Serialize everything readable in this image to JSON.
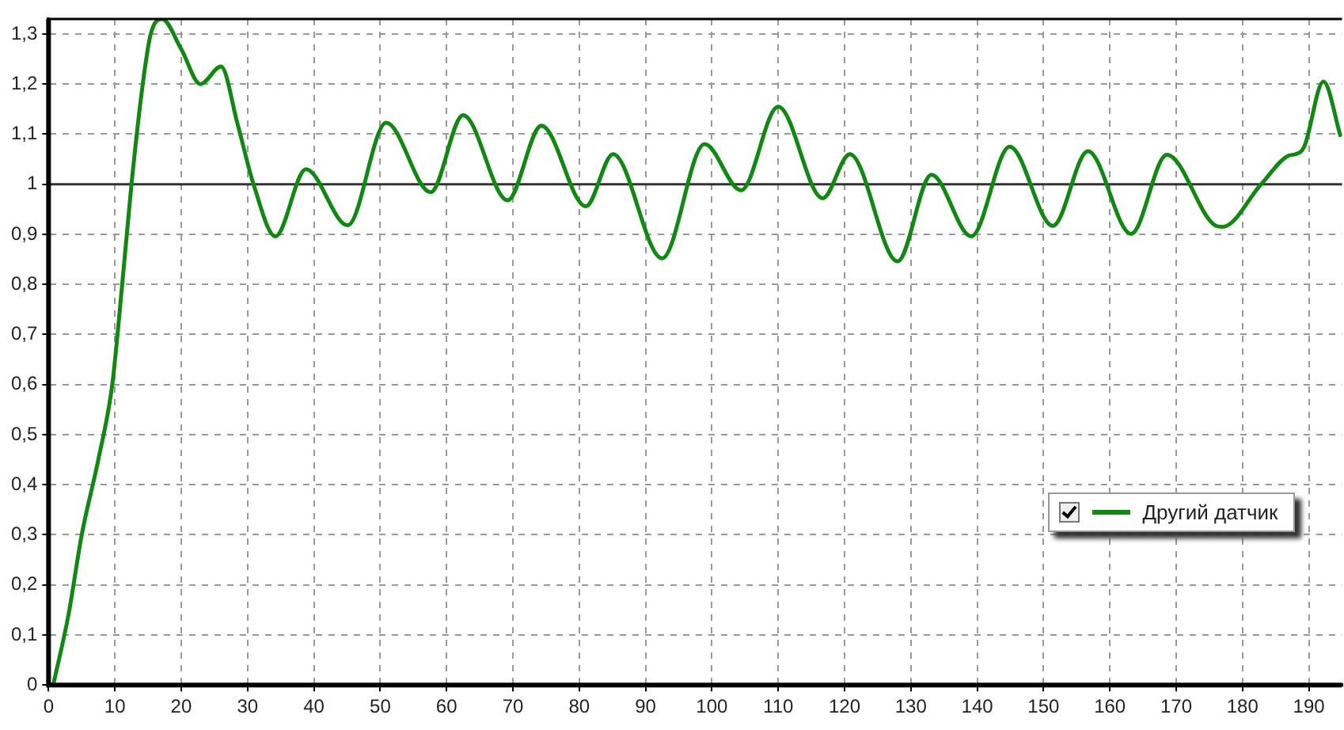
{
  "chart_data": {
    "type": "line",
    "legend": "right",
    "grid": true,
    "marker": "none",
    "line_style": "solid",
    "xlim": [
      0,
      195
    ],
    "xticks": [
      0,
      10,
      20,
      30,
      40,
      50,
      60,
      70,
      80,
      90,
      100,
      110,
      120,
      130,
      140,
      150,
      160,
      170,
      180,
      190
    ],
    "ylim": [
      0,
      1.33
    ],
    "yticks": [
      0,
      {
        "value": 0.1,
        "label": "0,1"
      },
      {
        "value": 0.2,
        "label": "0,2"
      },
      {
        "value": 0.3,
        "label": "0,3"
      },
      {
        "value": 0.4,
        "label": "0,4"
      },
      {
        "value": 0.5,
        "label": "0,5"
      },
      {
        "value": 0.6,
        "label": "0,6"
      },
      {
        "value": 0.7,
        "label": "0,7"
      },
      {
        "value": 0.8,
        "label": "0,8"
      },
      {
        "value": 0.9,
        "label": "0,9"
      },
      1,
      {
        "value": 1.1,
        "label": "1,1"
      },
      {
        "value": 1.2,
        "label": "1,2"
      },
      {
        "value": 1.3,
        "label": "1,3"
      }
    ],
    "ref_lines": [
      {
        "axis": "y",
        "value": 1,
        "color": "#333333",
        "line_style": "solid"
      }
    ],
    "series": [
      {
        "name": "Другий датчик",
        "color": "#118811",
        "x": [
          0.7,
          3,
          5,
          7.5,
          9.6,
          11.1,
          12.5,
          14.2,
          15.4,
          17.1,
          20,
          22.9,
          26,
          28.5,
          30.9,
          34.2,
          38.8,
          45.1,
          50.9,
          57.6,
          62.5,
          69.2,
          74.3,
          81,
          85.1,
          92.5,
          98.9,
          104.4,
          110,
          116.7,
          120.8,
          128,
          133.1,
          139.1,
          144.9,
          151.4,
          156.7,
          163.2,
          168.6,
          176,
          177,
          182.8,
          186.9,
          188,
          189.3,
          192.2,
          194.8
        ],
        "values": [
          0,
          0.14,
          0.3,
          0.45,
          0.6,
          0.8,
          1.0,
          1.2,
          1.3,
          1.33,
          1.27,
          1.2,
          1.235,
          1.12,
          1.0,
          0.896,
          1.03,
          0.918,
          1.123,
          0.984,
          1.138,
          0.968,
          1.117,
          0.956,
          1.06,
          0.852,
          1.08,
          0.988,
          1.155,
          0.972,
          1.06,
          0.846,
          1.019,
          0.896,
          1.075,
          0.917,
          1.066,
          0.901,
          1.059,
          0.917,
          0.915,
          1.0,
          1.057,
          1.06,
          1.075,
          1.205,
          1.095
        ]
      }
    ]
  }
}
